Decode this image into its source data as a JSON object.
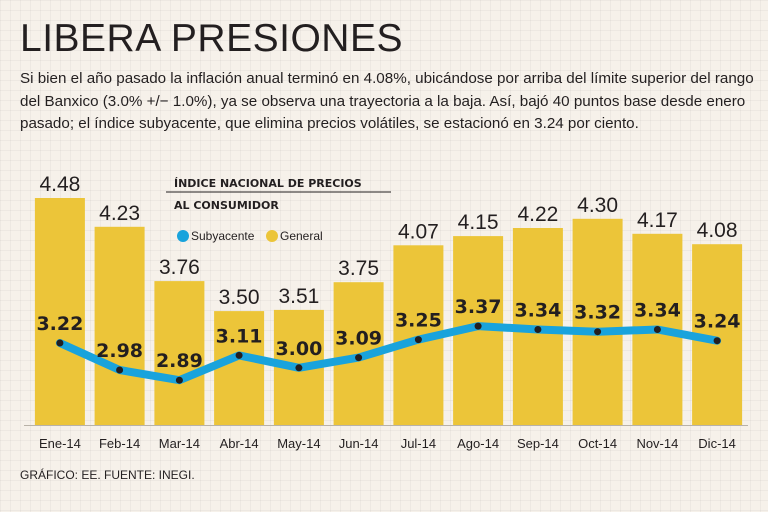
{
  "title": "LIBERA PRESIONES",
  "intro": "Si bien el año pasado la inflación anual terminó en 4.08%, ubicándose por arriba del límite superior del rango del Banxico (3.0% +/− 1.0%), ya se observa una trayectoria a la baja. Así, bajó 40 puntos base desde enero pasado; el índice subyacente, que elimina precios volátiles, se estacionó en 3.24 por ciento.",
  "source": "GRÁFICO: EE. FUENTE: INEGI.",
  "colors": {
    "bar": "#ecc539",
    "line": "#19a3dc",
    "marker": "#231f20"
  },
  "chart_data": {
    "type": "bar",
    "title": "ÍNDICE NACIONAL DE PRECIOS AL CONSUMIDOR",
    "title_lines": [
      "ÍNDICE NACIONAL DE PRECIOS",
      "AL CONSUMIDOR"
    ],
    "categories": [
      "Ene-14",
      "Feb-14",
      "Mar-14",
      "Abr-14",
      "May-14",
      "Jun-14",
      "Jul-14",
      "Ago-14",
      "Sep-14",
      "Oct-14",
      "Nov-14",
      "Dic-14"
    ],
    "series": [
      {
        "name": "General",
        "type": "bar",
        "values": [
          4.48,
          4.23,
          3.76,
          3.5,
          3.51,
          3.75,
          4.07,
          4.15,
          4.22,
          4.3,
          4.17,
          4.08
        ],
        "labels": [
          "4.48",
          "4.23",
          "3.76",
          "3.50",
          "3.51",
          "3.75",
          "4.07",
          "4.15",
          "4.22",
          "4.30",
          "4.17",
          "4.08"
        ]
      },
      {
        "name": "Subyacente",
        "type": "line",
        "values": [
          3.22,
          2.98,
          2.89,
          3.11,
          3.0,
          3.09,
          3.25,
          3.37,
          3.34,
          3.32,
          3.34,
          3.24
        ],
        "labels": [
          "3.22",
          "2.98",
          "2.89",
          "3.11",
          "3.00",
          "3.09",
          "3.25",
          "3.37",
          "3.34",
          "3.32",
          "3.34",
          "3.24"
        ]
      }
    ],
    "legend": [
      "Subyacente",
      "General"
    ],
    "legend_position": "top-left",
    "grid": false
  }
}
